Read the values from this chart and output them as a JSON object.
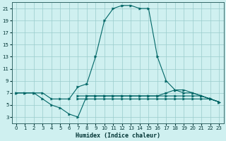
{
  "title": "",
  "xlabel": "Humidex (Indice chaleur)",
  "bg_color": "#cff0f0",
  "grid_color": "#99cccc",
  "line_color": "#006666",
  "xlim": [
    -0.5,
    23.5
  ],
  "ylim": [
    2.0,
    22.0
  ],
  "xticks": [
    0,
    1,
    2,
    3,
    4,
    5,
    6,
    7,
    8,
    9,
    10,
    11,
    12,
    13,
    14,
    15,
    16,
    17,
    18,
    19,
    20,
    21,
    22,
    23
  ],
  "yticks": [
    3,
    5,
    7,
    9,
    11,
    13,
    15,
    17,
    19,
    21
  ],
  "line1_x": [
    0,
    1,
    2,
    3,
    4,
    5,
    6,
    7,
    8,
    9,
    10,
    11,
    12,
    13,
    14,
    15,
    16,
    17,
    18,
    19,
    20,
    21,
    22,
    23
  ],
  "line1_y": [
    7,
    7,
    7,
    7,
    6,
    6,
    6,
    8,
    8.5,
    13,
    19,
    21,
    21.5,
    21.5,
    21,
    21,
    13,
    9,
    7.5,
    7,
    7,
    6.5,
    6,
    5.5
  ],
  "line2_x": [
    0,
    1,
    2,
    3,
    4,
    5,
    6,
    7,
    8,
    9,
    10,
    11,
    12,
    13,
    14,
    15,
    16,
    17,
    18,
    19,
    20,
    21,
    22,
    23
  ],
  "line2_y": [
    7,
    7,
    7,
    6,
    5,
    4.5,
    3.5,
    3,
    6.5,
    6.5,
    6.5,
    6.5,
    6.5,
    6.5,
    6.5,
    6.5,
    6.5,
    6.5,
    6.5,
    6.5,
    6.5,
    6.5,
    6,
    5.5
  ],
  "line3_x": [
    7,
    8,
    9,
    10,
    11,
    12,
    13,
    14,
    15,
    16,
    17,
    18,
    19,
    20,
    21,
    22,
    23
  ],
  "line3_y": [
    6,
    6,
    6,
    6,
    6,
    6,
    6,
    6,
    6,
    6,
    6,
    6,
    6,
    6,
    6,
    6,
    5.5
  ],
  "line4_x": [
    7,
    8,
    9,
    10,
    11,
    12,
    13,
    14,
    15,
    16,
    17,
    18,
    19,
    20,
    21,
    22,
    23
  ],
  "line4_y": [
    6.5,
    6.5,
    6.5,
    6.5,
    6.5,
    6.5,
    6.5,
    6.5,
    6.5,
    6.5,
    7,
    7.5,
    7.5,
    7,
    6.5,
    6,
    5.5
  ]
}
